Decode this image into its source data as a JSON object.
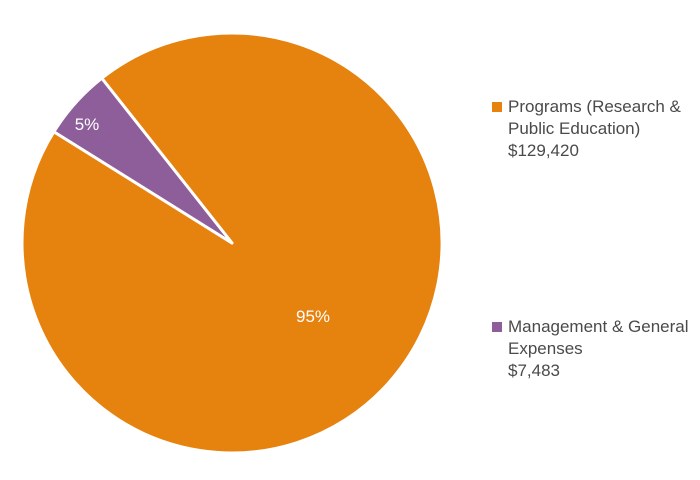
{
  "chart_data": {
    "type": "pie",
    "slices": [
      {
        "label": "Programs (Research & Public Education)",
        "amount": "$129,420",
        "value": 129420,
        "percent_label": "95%",
        "color": "#e6820e"
      },
      {
        "label": "Management & General Expenses",
        "amount": "$7,483",
        "value": 7483,
        "percent_label": "5%",
        "color": "#8d5e9a"
      }
    ],
    "legend_placement": "right"
  }
}
